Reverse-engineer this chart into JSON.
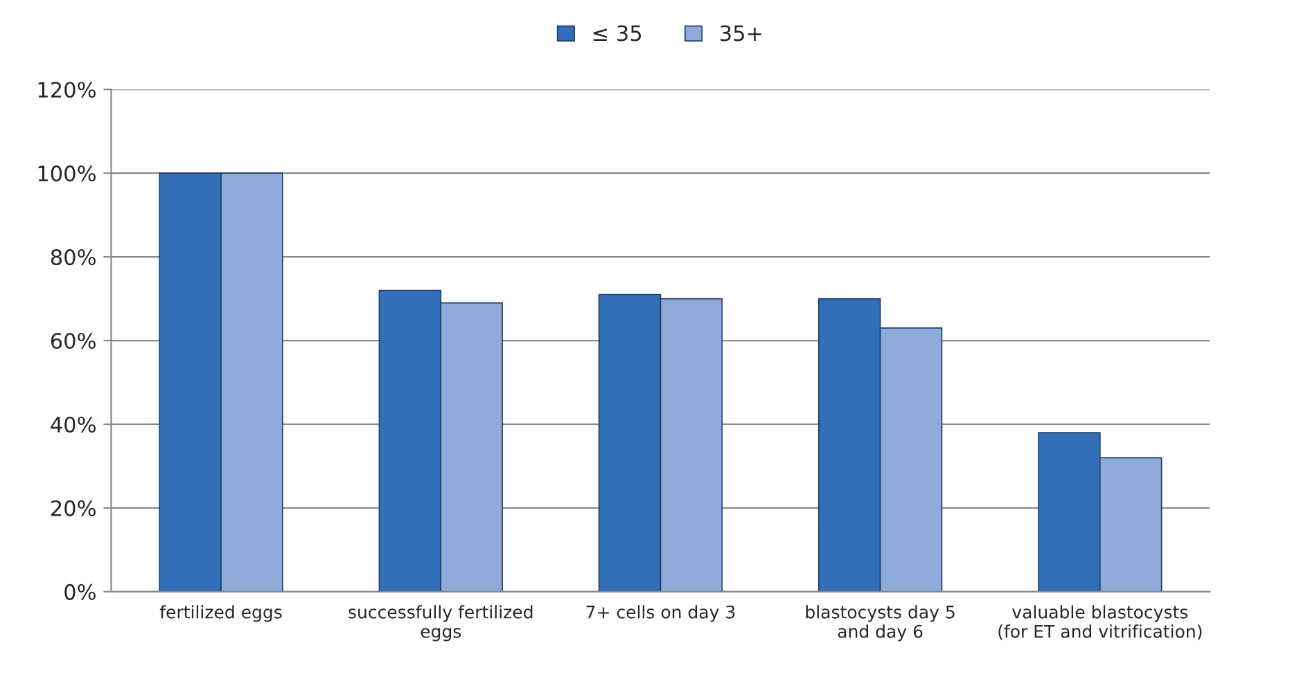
{
  "chart_data": {
    "type": "bar",
    "categories": [
      "fertilized eggs",
      "successfully fertilized\neggs",
      "7+ cells on day 3",
      "blastocysts day 5\nand day 6",
      "valuable blastocysts\n(for ET and vitrification)"
    ],
    "series": [
      {
        "name": "≤ 35",
        "color": "#336fb8",
        "values": [
          100,
          72,
          71,
          70,
          38
        ]
      },
      {
        "name": "35+",
        "color": "#8eaad8",
        "values": [
          100,
          69,
          70,
          63,
          32
        ]
      }
    ],
    "ylim": [
      0,
      120
    ],
    "yticks": [
      {
        "value": 0,
        "label": "0%"
      },
      {
        "value": 20,
        "label": "20%"
      },
      {
        "value": 40,
        "label": "40%"
      },
      {
        "value": 60,
        "label": "60%"
      },
      {
        "value": 80,
        "label": "80%"
      },
      {
        "value": 100,
        "label": "100%"
      },
      {
        "value": 120,
        "label": "120%"
      }
    ],
    "grid": "y",
    "legend": "top"
  }
}
